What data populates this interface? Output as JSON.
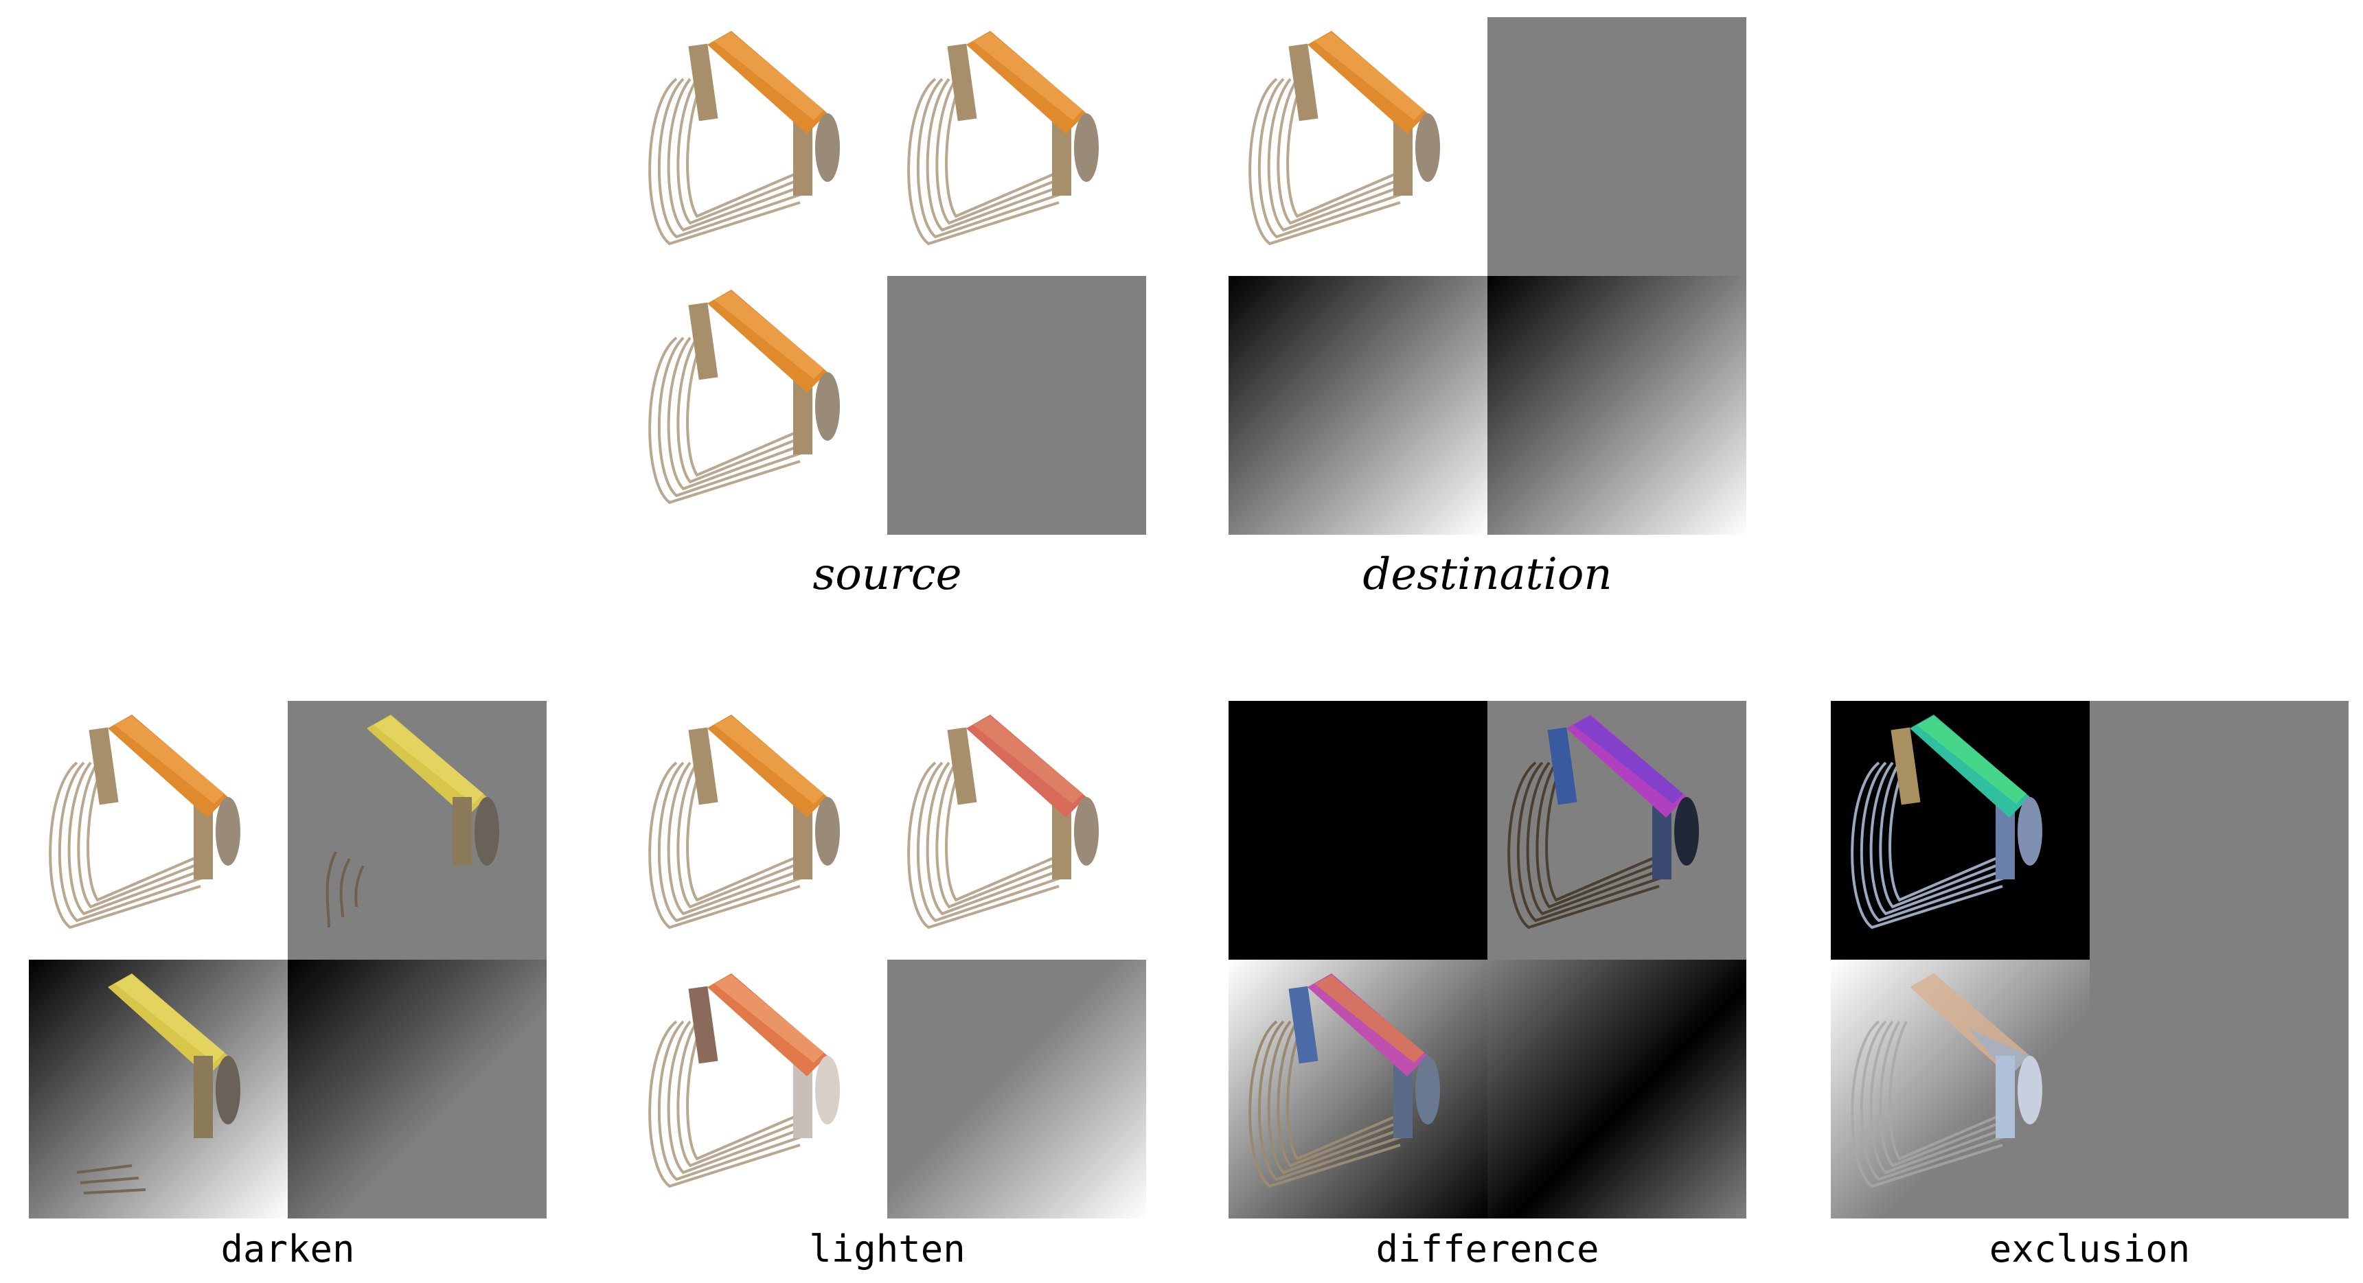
{
  "captions": {
    "source": "source",
    "destination": "destination",
    "darken": "darken",
    "lighten": "lighten",
    "difference": "difference",
    "exclusion": "exclusion"
  },
  "subject": "pastry-blender-photo",
  "colors": {
    "background": "#ffffff",
    "gray_square": "#808080",
    "black_square": "#000000",
    "handle_orange": "#e08a2e",
    "wire_silver": "#b5a48c"
  }
}
